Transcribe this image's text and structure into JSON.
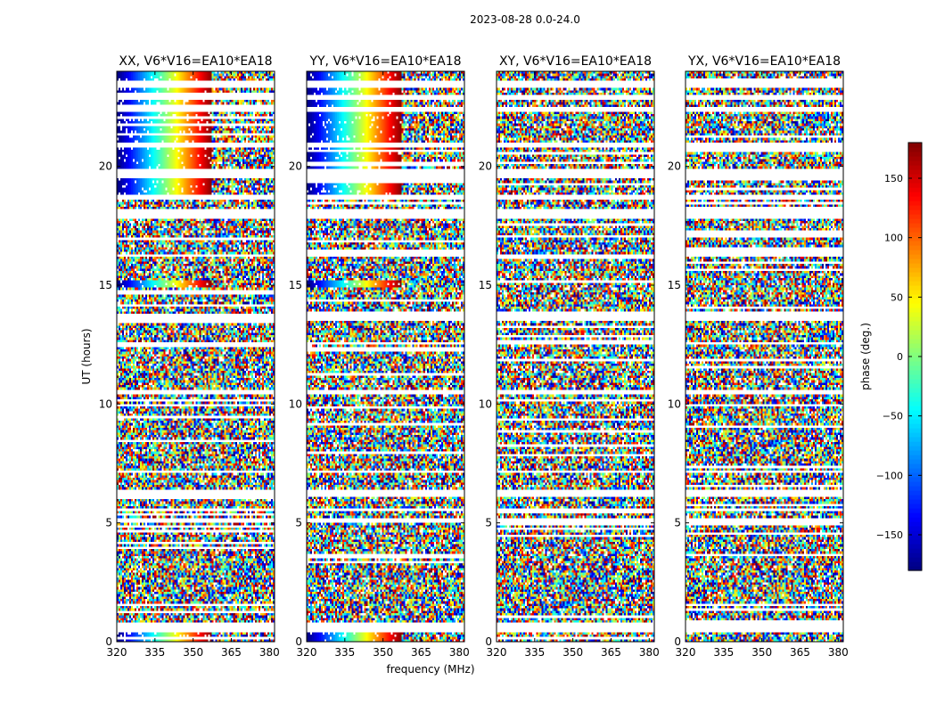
{
  "figure_title": "2023-08-28 0.0-24.0",
  "chart_data": {
    "type": "heatmap",
    "title": "2023-08-28 0.0-24.0",
    "xlabel": "frequency (MHz)",
    "ylabel": "UT (hours)",
    "xlim": [
      320,
      382
    ],
    "ylim": [
      0,
      24
    ],
    "x_ticks": [
      320,
      335,
      350,
      365,
      380
    ],
    "y_ticks": [
      0,
      5,
      10,
      15,
      20
    ],
    "colorbar": {
      "label": "phase (deg.)",
      "range": [
        -180,
        180
      ],
      "ticks": [
        -150,
        -100,
        -50,
        0,
        50,
        100,
        150
      ],
      "colormap": "jet"
    },
    "flagged_hour_ranges": [
      [
        0.45,
        0.8
      ],
      [
        5.05,
        5.18
      ],
      [
        5.5,
        5.58
      ],
      [
        6.1,
        6.35
      ],
      [
        7.1,
        7.18
      ],
      [
        10.45,
        10.55
      ],
      [
        12.5,
        12.6
      ],
      [
        13.55,
        13.75
      ],
      [
        16.2,
        16.3
      ],
      [
        17.8,
        18.2
      ],
      [
        18.6,
        18.8
      ],
      [
        19.5,
        19.9
      ],
      [
        20.8,
        21.0
      ],
      [
        22.3,
        22.45
      ],
      [
        22.8,
        22.95
      ],
      [
        23.35,
        23.6
      ]
    ],
    "panels": [
      {
        "title": "XX, V6*V16=EA10*EA18",
        "polarization": "XX",
        "coherent_phase_slope": true
      },
      {
        "title": "YY, V6*V16=EA10*EA18",
        "polarization": "YY",
        "coherent_phase_slope": true
      },
      {
        "title": "XY, V6*V16=EA10*EA18",
        "polarization": "XY",
        "coherent_phase_slope": false
      },
      {
        "title": "YX, V6*V16=EA10*EA18",
        "polarization": "YX",
        "coherent_phase_slope": false
      }
    ]
  }
}
